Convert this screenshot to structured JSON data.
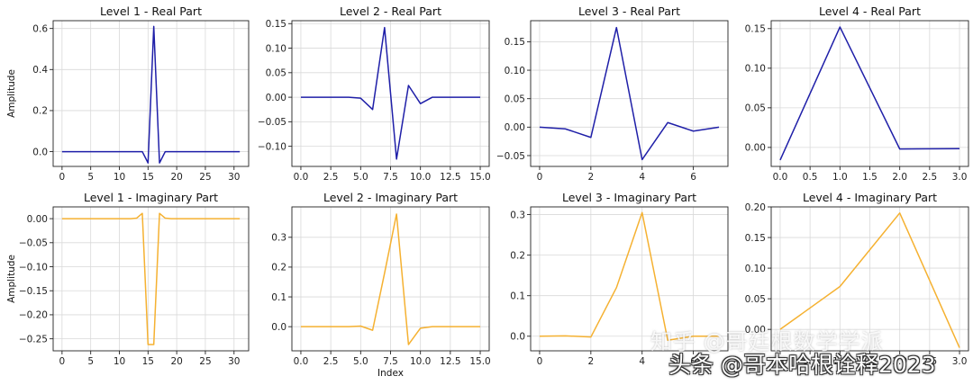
{
  "figure": {
    "line_color_real": "#1f1fa8",
    "line_color_imag": "#f5b131"
  },
  "chart_data": [
    {
      "type": "line",
      "title": "Level 1 - Real Part",
      "ylabel": "Amplitude",
      "xlabel": "",
      "xlim": [
        -1.55,
        32.55
      ],
      "ylim": [
        -0.072,
        0.638
      ],
      "xticks": [
        0,
        5,
        10,
        15,
        20,
        25,
        30
      ],
      "yticks": [
        0.0,
        0.2,
        0.4,
        0.6
      ],
      "ytick_labels": [
        "0.0",
        "0.2",
        "0.4",
        "0.6"
      ],
      "grid": true,
      "color": "real",
      "x": [
        0,
        1,
        2,
        3,
        4,
        5,
        6,
        7,
        8,
        9,
        10,
        11,
        12,
        13,
        14,
        15,
        16,
        17,
        18,
        19,
        20,
        21,
        22,
        23,
        24,
        25,
        26,
        27,
        28,
        29,
        30,
        31
      ],
      "y": [
        0,
        0,
        0,
        0,
        0,
        0,
        0,
        0,
        0,
        0,
        0,
        0,
        0,
        0,
        0,
        -0.055,
        0.61,
        -0.055,
        0,
        0,
        0,
        0,
        0,
        0,
        0,
        0,
        0,
        0,
        0,
        0,
        0,
        0
      ]
    },
    {
      "type": "line",
      "title": "Level 2 - Real Part",
      "ylabel": "",
      "xlabel": "",
      "xlim": [
        -0.75,
        15.75
      ],
      "ylim": [
        -0.141,
        0.156
      ],
      "xticks": [
        0,
        2.5,
        5,
        7.5,
        10,
        12.5,
        15
      ],
      "xtick_labels": [
        "0.0",
        "2.5",
        "5.0",
        "7.5",
        "10.0",
        "12.5",
        "15.0"
      ],
      "yticks": [
        -0.1,
        -0.05,
        0.0,
        0.05,
        0.1,
        0.15
      ],
      "ytick_labels": [
        "−0.10",
        "−0.05",
        "0.00",
        "0.05",
        "0.10",
        "0.15"
      ],
      "grid": true,
      "color": "real",
      "x": [
        0,
        1,
        2,
        3,
        4,
        5,
        6,
        7,
        8,
        9,
        10,
        11,
        12,
        13,
        14,
        15
      ],
      "y": [
        0,
        0,
        0,
        0,
        0,
        -0.002,
        -0.025,
        0.142,
        -0.126,
        0.024,
        -0.013,
        0,
        0,
        0,
        0,
        0
      ]
    },
    {
      "type": "line",
      "title": "Level 3 - Real Part",
      "ylabel": "",
      "xlabel": "",
      "xlim": [
        -0.35,
        7.35
      ],
      "ylim": [
        -0.069,
        0.187
      ],
      "xticks": [
        0,
        2,
        4,
        6
      ],
      "yticks": [
        -0.05,
        0.0,
        0.05,
        0.1,
        0.15
      ],
      "ytick_labels": [
        "−0.05",
        "0.00",
        "0.05",
        "0.10",
        "0.15"
      ],
      "grid": true,
      "color": "real",
      "x": [
        0,
        1,
        2,
        3,
        4,
        5,
        6,
        7
      ],
      "y": [
        0,
        -0.003,
        -0.018,
        0.175,
        -0.057,
        0.008,
        -0.007,
        0
      ]
    },
    {
      "type": "line",
      "title": "Level 4 - Real Part",
      "ylabel": "",
      "xlabel": "",
      "xlim": [
        -0.15,
        3.15
      ],
      "ylim": [
        -0.024,
        0.16
      ],
      "xticks": [
        0,
        0.5,
        1,
        1.5,
        2,
        2.5,
        3
      ],
      "xtick_labels": [
        "0.0",
        "0.5",
        "1.0",
        "1.5",
        "2.0",
        "2.5",
        "3.0"
      ],
      "yticks": [
        0.0,
        0.05,
        0.1,
        0.15
      ],
      "ytick_labels": [
        "0.00",
        "0.05",
        "0.10",
        "0.15"
      ],
      "grid": true,
      "color": "real",
      "x": [
        0,
        1,
        2,
        3
      ],
      "y": [
        -0.016,
        0.152,
        -0.002,
        -0.0015
      ]
    },
    {
      "type": "line",
      "title": "Level 1 - Imaginary Part",
      "ylabel": "Amplitude",
      "xlabel": "",
      "xlim": [
        -1.55,
        32.55
      ],
      "ylim": [
        -0.275,
        0.0245
      ],
      "xticks": [
        0,
        5,
        10,
        15,
        20,
        25,
        30
      ],
      "yticks": [
        0.0,
        -0.05,
        -0.1,
        -0.15,
        -0.2,
        -0.25
      ],
      "ytick_labels": [
        "0.00",
        "−0.05",
        "−0.10",
        "−0.15",
        "−0.20",
        "−0.25"
      ],
      "grid": true,
      "color": "imag",
      "x": [
        0,
        1,
        2,
        3,
        4,
        5,
        6,
        7,
        8,
        9,
        10,
        11,
        12,
        13,
        14,
        15,
        16,
        17,
        18,
        19,
        20,
        21,
        22,
        23,
        24,
        25,
        26,
        27,
        28,
        29,
        30,
        31
      ],
      "y": [
        0,
        0,
        0,
        0,
        0,
        0,
        0,
        0,
        0,
        0,
        0,
        0,
        0,
        0.001,
        0.011,
        -0.262,
        -0.262,
        0.011,
        0.001,
        0,
        0,
        0,
        0,
        0,
        0,
        0,
        0,
        0,
        0,
        0,
        0,
        0
      ]
    },
    {
      "type": "line",
      "title": "Level 2 - Imaginary Part",
      "ylabel": "",
      "xlabel": "Index",
      "xlim": [
        -0.75,
        15.75
      ],
      "ylim": [
        -0.081,
        0.402
      ],
      "xticks": [
        0,
        2.5,
        5,
        7.5,
        10,
        12.5,
        15
      ],
      "xtick_labels": [
        "0.0",
        "2.5",
        "5.0",
        "7.5",
        "10.0",
        "12.5",
        "15.0"
      ],
      "yticks": [
        0.0,
        0.1,
        0.2,
        0.3
      ],
      "ytick_labels": [
        "0.0",
        "0.1",
        "0.2",
        "0.3"
      ],
      "grid": true,
      "color": "imag",
      "x": [
        0,
        1,
        2,
        3,
        4,
        5,
        6,
        7,
        8,
        9,
        10,
        11,
        12,
        13,
        14,
        15
      ],
      "y": [
        0,
        0,
        0,
        0,
        0,
        0.002,
        -0.012,
        0.18,
        0.378,
        -0.06,
        -0.005,
        0,
        0,
        0,
        0,
        0
      ]
    },
    {
      "type": "line",
      "title": "Level 3 - Imaginary Part",
      "ylabel": "",
      "xlabel": "",
      "xlim": [
        -0.35,
        7.35
      ],
      "ylim": [
        -0.036,
        0.319
      ],
      "xticks": [
        0,
        2,
        4,
        6
      ],
      "yticks": [
        0.0,
        0.1,
        0.2,
        0.3
      ],
      "ytick_labels": [
        "0.0",
        "0.1",
        "0.2",
        "0.3"
      ],
      "grid": true,
      "color": "imag",
      "x": [
        0,
        1,
        2,
        3,
        4,
        5,
        6,
        7
      ],
      "y": [
        0,
        0.001,
        -0.002,
        0.12,
        0.305,
        -0.01,
        0,
        0
      ]
    },
    {
      "type": "line",
      "title": "Level 4 - Imaginary Part",
      "ylabel": "",
      "xlabel": "",
      "xlim": [
        -0.15,
        3.15
      ],
      "ylim": [
        -0.035,
        0.2
      ],
      "xticks": [
        0,
        0.5,
        1,
        1.5,
        2,
        2.5,
        3
      ],
      "xtick_labels": [
        "0.0",
        "0.5",
        "1.0",
        "1.5",
        "2.0",
        "2.5",
        "3.0"
      ],
      "yticks": [
        0.0,
        0.05,
        0.1,
        0.15,
        0.2
      ],
      "ytick_labels": [
        "0.00",
        "0.05",
        "0.10",
        "0.15",
        "0.20"
      ],
      "grid": true,
      "color": "imag",
      "x": [
        0,
        1,
        2,
        3
      ],
      "y": [
        0,
        0.07,
        0.19,
        -0.03
      ]
    }
  ],
  "watermark": {
    "line1": "知乎 @哥廷根数学学派",
    "line2": "头条 @哥本哈根诠释2023"
  }
}
